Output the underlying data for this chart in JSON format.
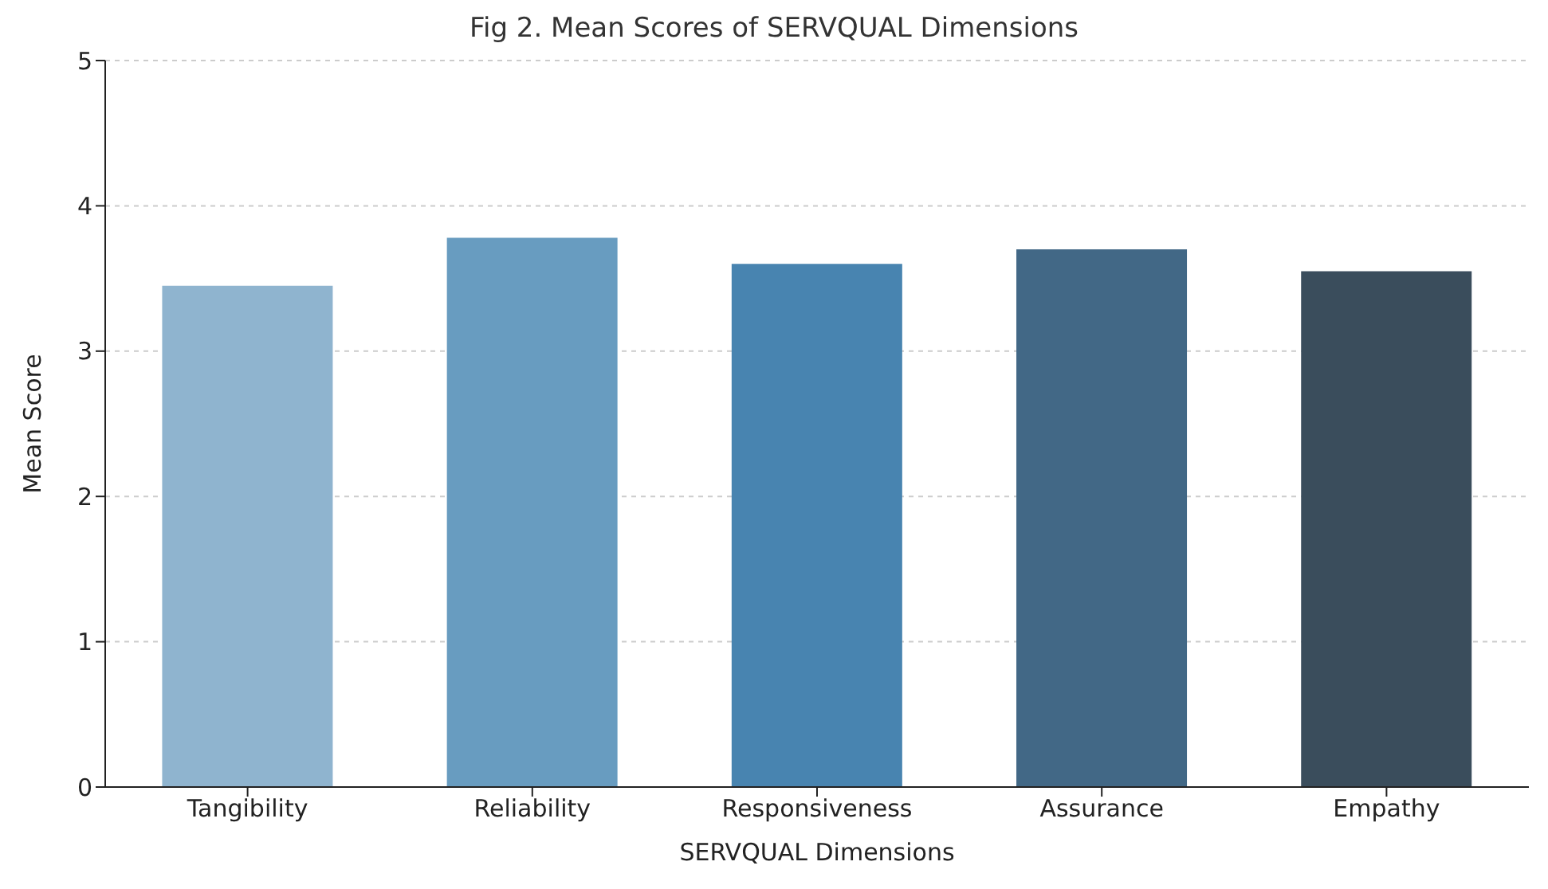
{
  "chart_data": {
    "type": "bar",
    "title": "Fig 2. Mean Scores of SERVQUAL Dimensions",
    "xlabel": "SERVQUAL Dimensions",
    "ylabel": "Mean Score",
    "categories": [
      "Tangibility",
      "Reliability",
      "Responsiveness",
      "Assurance",
      "Empathy"
    ],
    "values": [
      3.45,
      3.78,
      3.6,
      3.7,
      3.55
    ],
    "colors": [
      "#8fb4cf",
      "#689cc0",
      "#4884b0",
      "#426886",
      "#3a4d5c"
    ],
    "ylim": [
      0,
      5
    ],
    "yticks": [
      0,
      1,
      2,
      3,
      4,
      5
    ],
    "grid": "y"
  }
}
